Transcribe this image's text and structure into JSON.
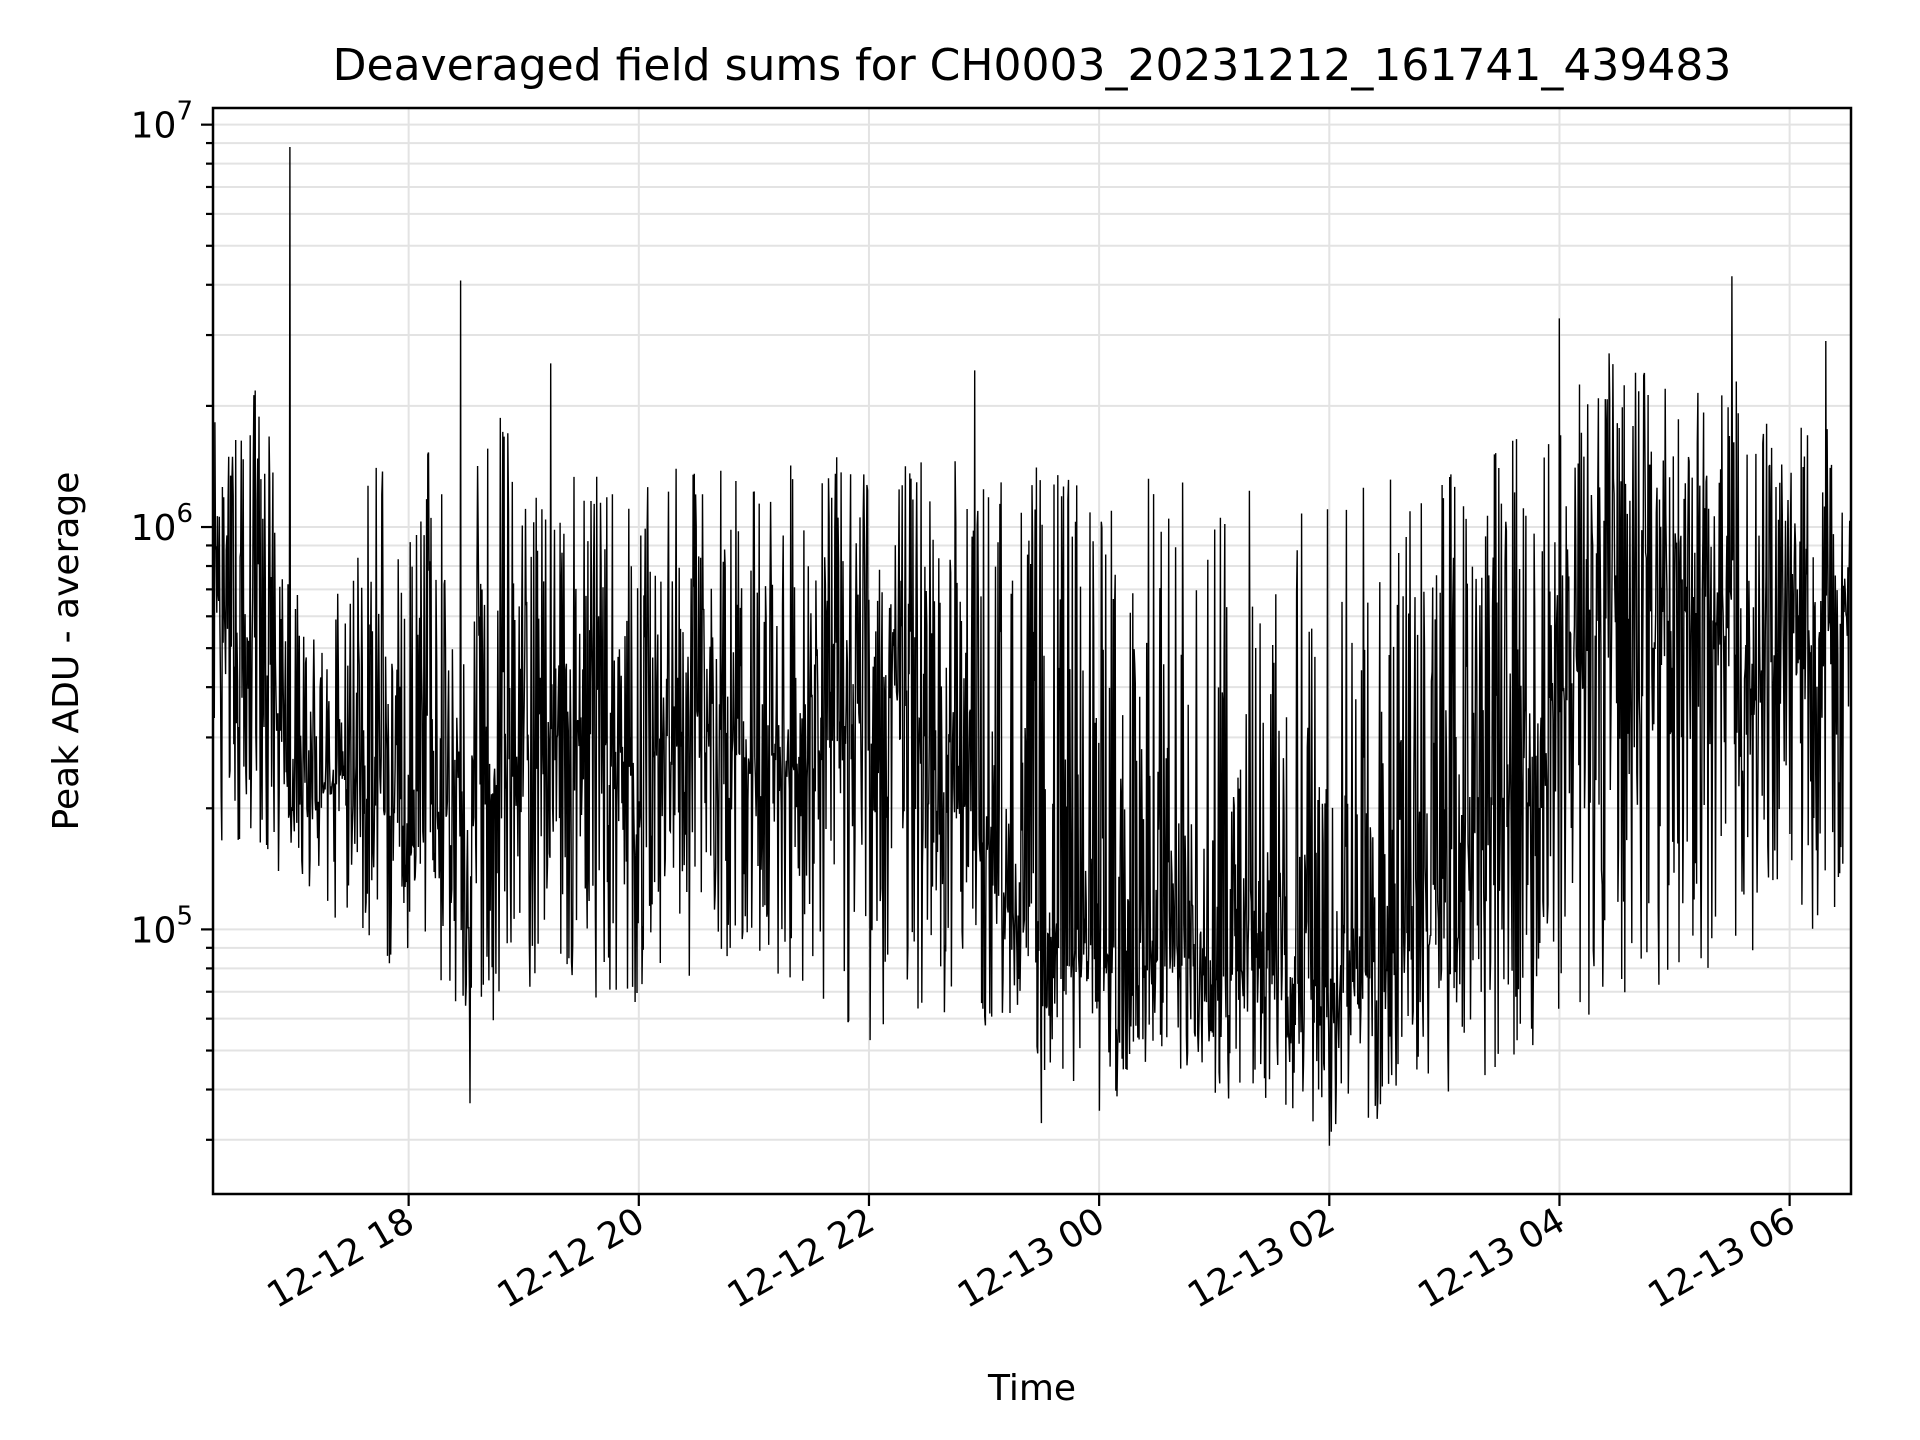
{
  "chart_data": {
    "type": "line",
    "title": "Deaveraged field sums for CH0003_20231212_161741_439483",
    "xlabel": "Time",
    "ylabel": "Peak ADU - average",
    "yscale": "log",
    "ylim": [
      22000,
      11000000
    ],
    "xlim": [
      "2023-12-12 16:18",
      "2023-12-13 06:32"
    ],
    "grid": true,
    "x_tick_labels": [
      "12-12 18",
      "12-12 20",
      "12-12 22",
      "12-13 00",
      "12-13 02",
      "12-13 04",
      "12-13 06"
    ],
    "x_tick_values": [
      "2023-12-12 18:00",
      "2023-12-12 20:00",
      "2023-12-12 22:00",
      "2023-12-13 00:00",
      "2023-12-13 02:00",
      "2023-12-13 04:00",
      "2023-12-13 06:00"
    ],
    "y_tick_labels": [
      {
        "base": "10",
        "exp": "5",
        "value": 100000
      },
      {
        "base": "10",
        "exp": "6",
        "value": 1000000
      },
      {
        "base": "10",
        "exp": "7",
        "value": 10000000
      }
    ],
    "series": [
      {
        "color": "#000000",
        "x": [
          "2023-12-12 16:18",
          "2023-12-12 16:30",
          "2023-12-12 16:45",
          "2023-12-12 17:00",
          "2023-12-12 17:15",
          "2023-12-12 17:30",
          "2023-12-12 17:45",
          "2023-12-12 18:00",
          "2023-12-12 18:15",
          "2023-12-12 18:30",
          "2023-12-12 18:45",
          "2023-12-12 19:00",
          "2023-12-12 19:15",
          "2023-12-12 19:30",
          "2023-12-12 19:45",
          "2023-12-12 20:00",
          "2023-12-12 20:15",
          "2023-12-12 20:30",
          "2023-12-12 20:45",
          "2023-12-12 21:00",
          "2023-12-12 21:15",
          "2023-12-12 21:30",
          "2023-12-12 21:45",
          "2023-12-12 22:00",
          "2023-12-12 22:15",
          "2023-12-12 22:30",
          "2023-12-12 22:45",
          "2023-12-12 23:00",
          "2023-12-12 23:15",
          "2023-12-12 23:30",
          "2023-12-12 23:45",
          "2023-12-13 00:00",
          "2023-12-13 00:15",
          "2023-12-13 00:30",
          "2023-12-13 00:45",
          "2023-12-13 01:00",
          "2023-12-13 01:15",
          "2023-12-13 01:30",
          "2023-12-13 01:45",
          "2023-12-13 02:00",
          "2023-12-13 02:15",
          "2023-12-13 02:30",
          "2023-12-13 02:45",
          "2023-12-13 03:00",
          "2023-12-13 03:15",
          "2023-12-13 03:30",
          "2023-12-13 03:45",
          "2023-12-13 04:00",
          "2023-12-13 04:15",
          "2023-12-13 04:30",
          "2023-12-13 04:45",
          "2023-12-13 05:00",
          "2023-12-13 05:15",
          "2023-12-13 05:30",
          "2023-12-13 05:45",
          "2023-12-13 06:00",
          "2023-12-13 06:15",
          "2023-12-13 06:30"
        ],
        "y_low": [
          150000,
          160000,
          120000,
          150000,
          110000,
          100000,
          70000,
          90000,
          75000,
          50000,
          60000,
          70000,
          75000,
          70000,
          65000,
          60000,
          80000,
          75000,
          85000,
          80000,
          75000,
          70000,
          55000,
          50000,
          65000,
          60000,
          60000,
          55000,
          60000,
          45000,
          40000,
          35000,
          38000,
          40000,
          38000,
          38000,
          37000,
          36000,
          34000,
          31000,
          32000,
          31000,
          34000,
          38000,
          40000,
          45000,
          50000,
          60000,
          55000,
          60000,
          70000,
          75000,
          80000,
          80000,
          75000,
          90000,
          95000,
          100000
        ],
        "y_mid": [
          700000,
          450000,
          500000,
          200000,
          220000,
          250000,
          280000,
          230000,
          200000,
          180000,
          220000,
          250000,
          300000,
          320000,
          280000,
          260000,
          300000,
          350000,
          280000,
          270000,
          260000,
          280000,
          300000,
          350000,
          400000,
          300000,
          250000,
          160000,
          110000,
          100000,
          90000,
          85000,
          90000,
          80000,
          80000,
          75000,
          80000,
          80000,
          75000,
          70000,
          80000,
          80000,
          120000,
          150000,
          200000,
          220000,
          260000,
          350000,
          500000,
          550000,
          600000,
          700000,
          650000,
          500000,
          350000,
          450000,
          500000,
          600000
        ],
        "y_high": [
          1900000,
          1700000,
          2600000,
          750000,
          500000,
          1100000,
          1700000,
          900000,
          2100000,
          1100000,
          2400000,
          1300000,
          1300000,
          1400000,
          1300000,
          1200000,
          1400000,
          1400000,
          1500000,
          1500000,
          1400000,
          1500000,
          1500000,
          1500000,
          1450000,
          1600000,
          1500000,
          1500000,
          1400000,
          1500000,
          1400000,
          1350000,
          1350000,
          1400000,
          1350000,
          1400000,
          1350000,
          1400000,
          1350000,
          1300000,
          1400000,
          1300000,
          1400000,
          1500000,
          1600000,
          1700000,
          2100000,
          2400000,
          3000000,
          2600000,
          2500000,
          2200000,
          2200000,
          2400000,
          2000000,
          1700000,
          2000000,
          1500000
        ],
        "spikes": [
          {
            "x": "2023-12-12 16:58",
            "y": 8800000
          },
          {
            "x": "2023-12-12 18:27",
            "y": 4100000
          },
          {
            "x": "2023-12-12 19:14",
            "y": 2550000
          },
          {
            "x": "2023-12-12 22:55",
            "y": 2450000
          },
          {
            "x": "2023-12-13 04:00",
            "y": 3300000
          },
          {
            "x": "2023-12-13 05:30",
            "y": 4200000
          },
          {
            "x": "2023-12-13 06:19",
            "y": 2900000
          }
        ],
        "dips": [
          {
            "x": "2023-12-12 18:32",
            "y": 37000
          },
          {
            "x": "2023-12-13 02:00",
            "y": 29000
          },
          {
            "x": "2023-12-12 23:30",
            "y": 33000
          }
        ]
      }
    ]
  }
}
